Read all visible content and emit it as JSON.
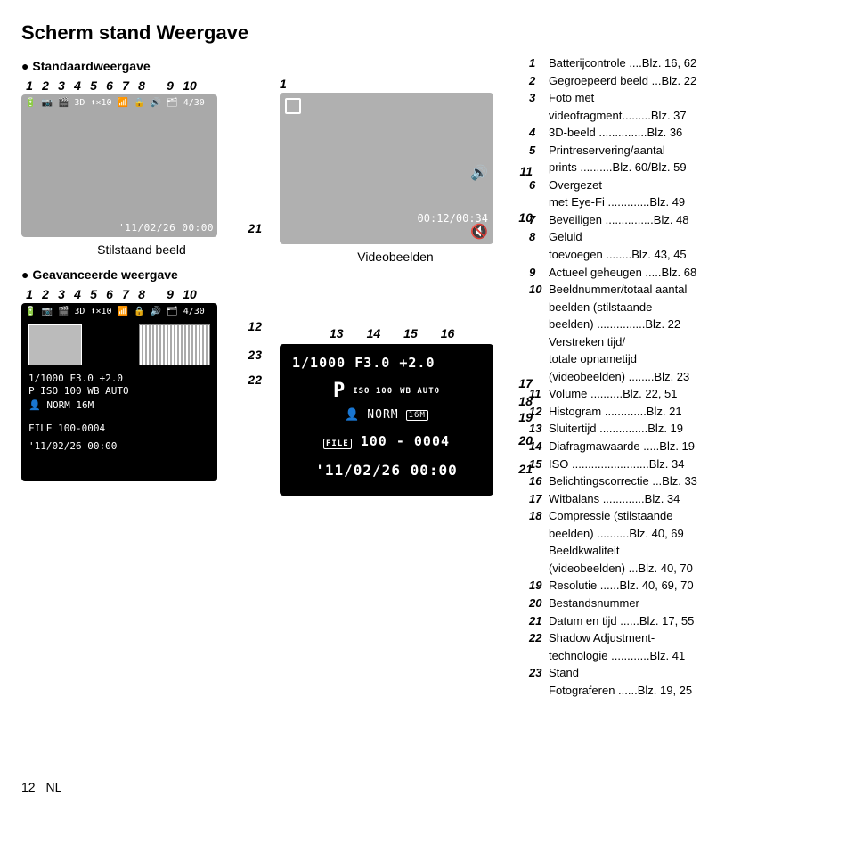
{
  "title": "Scherm stand Weergave",
  "left": {
    "bullet1": "Standaardweergave",
    "numbers_row_1": [
      "1",
      "2",
      "3",
      "4",
      "5",
      "6",
      "7",
      "8",
      "",
      "9",
      "10"
    ],
    "lcd_still": {
      "top_icons_text": "🔋 📷 🎬 3D ⬆×10 📶 🔒 🔊   🗂 4/30",
      "bottom_time": "'11/02/26 00:00"
    },
    "side_num_21": "21",
    "caption_still": "Stilstaand beeld",
    "bullet2": "Geavanceerde weergave",
    "numbers_row_2": [
      "1",
      "2",
      "3",
      "4",
      "5",
      "6",
      "7",
      "8",
      "",
      "9",
      "10"
    ],
    "lcd_adv": {
      "top_icons_text": "🔋 📷 🎬 3D ⬆×10 📶 🔒 🔊   🗂 4/30",
      "r1": "1/1000 F3.0 +2.0",
      "r2": "P  ISO 100  WB AUTO",
      "r3": "👤 NORM 16M",
      "r4": "FILE 100-0004",
      "r5": "'11/02/26 00:00"
    },
    "side_num_12": "12",
    "side_num_23": "23",
    "side_num_22": "22"
  },
  "mid": {
    "top_num_1": "1",
    "lcd_video": {
      "volume_icon": "🔊",
      "time": "00:12/00:34",
      "mute_icon": "🔇"
    },
    "side_num_11": "11",
    "side_num_10": "10",
    "caption_video": "Videobeelden",
    "row_13_16": [
      "13",
      "14",
      "15",
      "16"
    ],
    "lcd_detail": {
      "l1": "1/1000  F3.0   +2.0",
      "l2_p": "P",
      "l2_iso": "ISO 100",
      "l2_wb": "WB AUTO",
      "l3a": "👤",
      "l3b": "NORM",
      "l3c": "16M",
      "l4_file": "FILE",
      "l4_num": "100 - 0004",
      "l5": "'11/02/26 00:00"
    },
    "side_num_17": "17",
    "side_num_18": "18",
    "side_num_19": "19",
    "side_num_20": "20",
    "side_num_21b": "21"
  },
  "refs": [
    {
      "n": "1",
      "t": "Batterijcontrole ....Blz. 16, 62"
    },
    {
      "n": "2",
      "t": "Gegroepeerd beeld ...Blz. 22"
    },
    {
      "n": "3",
      "t": "Foto met"
    },
    {
      "n": "",
      "t": "videofragment.........Blz. 37"
    },
    {
      "n": "4",
      "t": "3D-beeld ...............Blz. 36"
    },
    {
      "n": "5",
      "t": "Printreservering/aantal"
    },
    {
      "n": "",
      "t": "prints ..........Blz. 60/Blz. 59"
    },
    {
      "n": "6",
      "t": "Overgezet"
    },
    {
      "n": "",
      "t": "met Eye-Fi .............Blz. 49"
    },
    {
      "n": "7",
      "t": "Beveiligen ...............Blz. 48"
    },
    {
      "n": "8",
      "t": "Geluid"
    },
    {
      "n": "",
      "t": "toevoegen ........Blz. 43, 45"
    },
    {
      "n": "9",
      "t": "Actueel geheugen .....Blz. 68"
    },
    {
      "n": "10",
      "t": "Beeldnummer/totaal aantal"
    },
    {
      "n": "",
      "t": "beelden (stilstaande"
    },
    {
      "n": "",
      "t": "beelden) ...............Blz. 22"
    },
    {
      "n": "",
      "t": "Verstreken tijd/"
    },
    {
      "n": "",
      "t": "totale opnametijd"
    },
    {
      "n": "",
      "t": "(videobeelden) ........Blz. 23"
    },
    {
      "n": "11",
      "t": "Volume ..........Blz. 22, 51"
    },
    {
      "n": "12",
      "t": "Histogram .............Blz. 21"
    },
    {
      "n": "13",
      "t": "Sluitertijd ...............Blz. 19"
    },
    {
      "n": "14",
      "t": "Diafragmawaarde .....Blz. 19"
    },
    {
      "n": "15",
      "t": "ISO ........................Blz. 34"
    },
    {
      "n": "16",
      "t": "Belichtingscorrectie ...Blz. 33"
    },
    {
      "n": "17",
      "t": "Witbalans .............Blz. 34"
    },
    {
      "n": "18",
      "t": "Compressie (stilstaande"
    },
    {
      "n": "",
      "t": "beelden) ..........Blz. 40, 69"
    },
    {
      "n": "",
      "t": "Beeldkwaliteit"
    },
    {
      "n": "",
      "t": "(videobeelden) ...Blz. 40, 70"
    },
    {
      "n": "19",
      "t": "Resolutie ......Blz. 40, 69, 70"
    },
    {
      "n": "20",
      "t": "Bestandsnummer"
    },
    {
      "n": "21",
      "t": "Datum en tijd ......Blz. 17, 55"
    },
    {
      "n": "22",
      "t": "Shadow Adjustment-"
    },
    {
      "n": "",
      "t": "technologie ............Blz. 41"
    },
    {
      "n": "23",
      "t": "Stand"
    },
    {
      "n": "",
      "t": "Fotograferen ......Blz. 19, 25"
    }
  ],
  "footer_page": "12",
  "footer_lang": "NL"
}
